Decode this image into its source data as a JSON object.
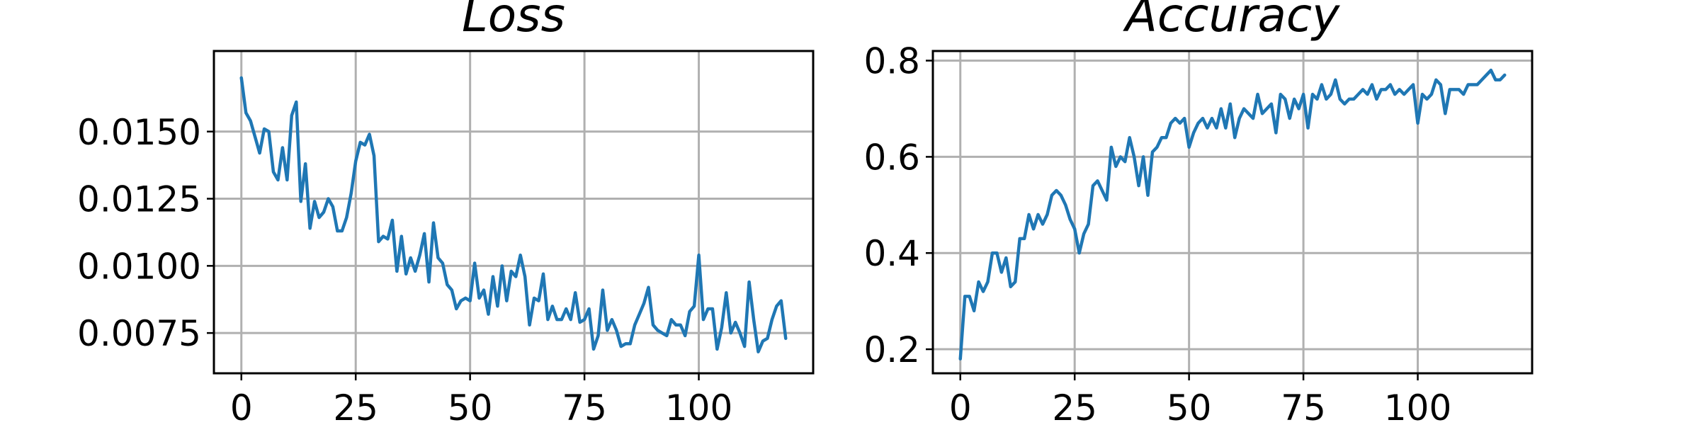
{
  "chart_data": [
    {
      "type": "line",
      "title": "Loss",
      "xlabel": "",
      "ylabel": "",
      "xlim": [
        -6,
        125
      ],
      "ylim": [
        0.006,
        0.018
      ],
      "x_ticks": [
        0,
        25,
        50,
        75,
        100
      ],
      "x_tick_labels": [
        "0",
        "25",
        "50",
        "75",
        "100"
      ],
      "y_ticks": [
        0.0075,
        0.01,
        0.0125,
        0.015
      ],
      "y_tick_labels": [
        "0.0075",
        "0.0100",
        "0.0125",
        "0.0150"
      ],
      "grid": true,
      "color": "#1f77b4",
      "series": [
        {
          "x": [
            0,
            1,
            2,
            3,
            4,
            5,
            6,
            7,
            8,
            9,
            10,
            11,
            12,
            13,
            14,
            15,
            16,
            17,
            18,
            19,
            20,
            21,
            22,
            23,
            24,
            25,
            26,
            27,
            28,
            29,
            30,
            31,
            32,
            33,
            34,
            35,
            36,
            37,
            38,
            39,
            40,
            41,
            42,
            43,
            44,
            45,
            46,
            47,
            48,
            49,
            50,
            51,
            52,
            53,
            54,
            55,
            56,
            57,
            58,
            59,
            60,
            61,
            62,
            63,
            64,
            65,
            66,
            67,
            68,
            69,
            70,
            71,
            72,
            73,
            74,
            75,
            76,
            77,
            78,
            79,
            80,
            81,
            82,
            83,
            84,
            85,
            86,
            87,
            88,
            89,
            90,
            91,
            92,
            93,
            94,
            95,
            96,
            97,
            98,
            99,
            100,
            101,
            102,
            103,
            104,
            105,
            106,
            107,
            108,
            109,
            110,
            111,
            112,
            113,
            114,
            115,
            116,
            117,
            118,
            119
          ],
          "y": [
            0.017,
            0.0157,
            0.0154,
            0.0148,
            0.0142,
            0.0151,
            0.015,
            0.0135,
            0.0132,
            0.0144,
            0.0132,
            0.0156,
            0.0161,
            0.0124,
            0.0138,
            0.0114,
            0.0124,
            0.0118,
            0.012,
            0.0125,
            0.0122,
            0.0113,
            0.0113,
            0.0118,
            0.0127,
            0.0139,
            0.0146,
            0.0145,
            0.0149,
            0.0141,
            0.0109,
            0.0111,
            0.011,
            0.0117,
            0.0098,
            0.0111,
            0.0097,
            0.0103,
            0.0098,
            0.0104,
            0.0112,
            0.0094,
            0.0116,
            0.0103,
            0.0101,
            0.0093,
            0.0091,
            0.0084,
            0.0087,
            0.0088,
            0.0087,
            0.0101,
            0.0088,
            0.0091,
            0.0082,
            0.0096,
            0.0085,
            0.01,
            0.0087,
            0.0098,
            0.0096,
            0.0104,
            0.0096,
            0.0078,
            0.0088,
            0.0087,
            0.0097,
            0.008,
            0.0085,
            0.008,
            0.008,
            0.0084,
            0.008,
            0.009,
            0.0079,
            0.008,
            0.0084,
            0.0069,
            0.0074,
            0.0091,
            0.0076,
            0.008,
            0.0076,
            0.007,
            0.0071,
            0.0071,
            0.0078,
            0.0082,
            0.0086,
            0.0092,
            0.0078,
            0.0076,
            0.0075,
            0.0074,
            0.008,
            0.0078,
            0.0078,
            0.0074,
            0.0083,
            0.0085,
            0.0104,
            0.008,
            0.0084,
            0.0084,
            0.0069,
            0.0077,
            0.009,
            0.0075,
            0.0079,
            0.0075,
            0.007,
            0.0094,
            0.008,
            0.0068,
            0.0072,
            0.0073,
            0.008,
            0.0085,
            0.0087,
            0.0073
          ]
        }
      ]
    },
    {
      "type": "line",
      "title": "Accuracy",
      "xlabel": "",
      "ylabel": "",
      "xlim": [
        -6,
        125
      ],
      "ylim": [
        0.15,
        0.82
      ],
      "x_ticks": [
        0,
        25,
        50,
        75,
        100
      ],
      "x_tick_labels": [
        "0",
        "25",
        "50",
        "75",
        "100"
      ],
      "y_ticks": [
        0.2,
        0.4,
        0.6,
        0.8
      ],
      "y_tick_labels": [
        "0.2",
        "0.4",
        "0.6",
        "0.8"
      ],
      "grid": true,
      "color": "#1f77b4",
      "series": [
        {
          "x": [
            0,
            1,
            2,
            3,
            4,
            5,
            6,
            7,
            8,
            9,
            10,
            11,
            12,
            13,
            14,
            15,
            16,
            17,
            18,
            19,
            20,
            21,
            22,
            23,
            24,
            25,
            26,
            27,
            28,
            29,
            30,
            31,
            32,
            33,
            34,
            35,
            36,
            37,
            38,
            39,
            40,
            41,
            42,
            43,
            44,
            45,
            46,
            47,
            48,
            49,
            50,
            51,
            52,
            53,
            54,
            55,
            56,
            57,
            58,
            59,
            60,
            61,
            62,
            63,
            64,
            65,
            66,
            67,
            68,
            69,
            70,
            71,
            72,
            73,
            74,
            75,
            76,
            77,
            78,
            79,
            80,
            81,
            82,
            83,
            84,
            85,
            86,
            87,
            88,
            89,
            90,
            91,
            92,
            93,
            94,
            95,
            96,
            97,
            98,
            99,
            100,
            101,
            102,
            103,
            104,
            105,
            106,
            107,
            108,
            109,
            110,
            111,
            112,
            113,
            114,
            115,
            116,
            117,
            118,
            119
          ],
          "y": [
            0.18,
            0.31,
            0.31,
            0.28,
            0.34,
            0.32,
            0.34,
            0.4,
            0.4,
            0.36,
            0.39,
            0.33,
            0.34,
            0.43,
            0.43,
            0.48,
            0.45,
            0.48,
            0.46,
            0.48,
            0.52,
            0.53,
            0.52,
            0.5,
            0.47,
            0.45,
            0.4,
            0.44,
            0.46,
            0.54,
            0.55,
            0.53,
            0.51,
            0.62,
            0.58,
            0.6,
            0.59,
            0.64,
            0.6,
            0.54,
            0.6,
            0.52,
            0.61,
            0.62,
            0.64,
            0.64,
            0.67,
            0.68,
            0.67,
            0.68,
            0.62,
            0.65,
            0.67,
            0.68,
            0.66,
            0.68,
            0.66,
            0.7,
            0.66,
            0.71,
            0.64,
            0.68,
            0.7,
            0.69,
            0.68,
            0.73,
            0.69,
            0.7,
            0.71,
            0.65,
            0.73,
            0.72,
            0.68,
            0.72,
            0.7,
            0.73,
            0.66,
            0.73,
            0.72,
            0.75,
            0.72,
            0.73,
            0.76,
            0.72,
            0.71,
            0.72,
            0.72,
            0.73,
            0.74,
            0.73,
            0.75,
            0.72,
            0.74,
            0.74,
            0.75,
            0.73,
            0.74,
            0.73,
            0.74,
            0.75,
            0.67,
            0.73,
            0.72,
            0.73,
            0.76,
            0.75,
            0.69,
            0.74,
            0.74,
            0.74,
            0.73,
            0.75,
            0.75,
            0.75,
            0.76,
            0.77,
            0.78,
            0.76,
            0.76,
            0.77
          ]
        }
      ]
    }
  ]
}
